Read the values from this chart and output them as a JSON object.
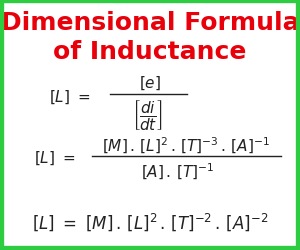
{
  "title_line1": "Dimensional Formula",
  "title_line2": "of Inductance",
  "title_color": "#e8000a",
  "title_fontsize": 18,
  "bg_color": "#ffffff",
  "border_color": "#2ecc40",
  "border_linewidth": 6,
  "eq_color": "#222222",
  "eq_fontsize": 11,
  "eq3_fontsize": 12
}
